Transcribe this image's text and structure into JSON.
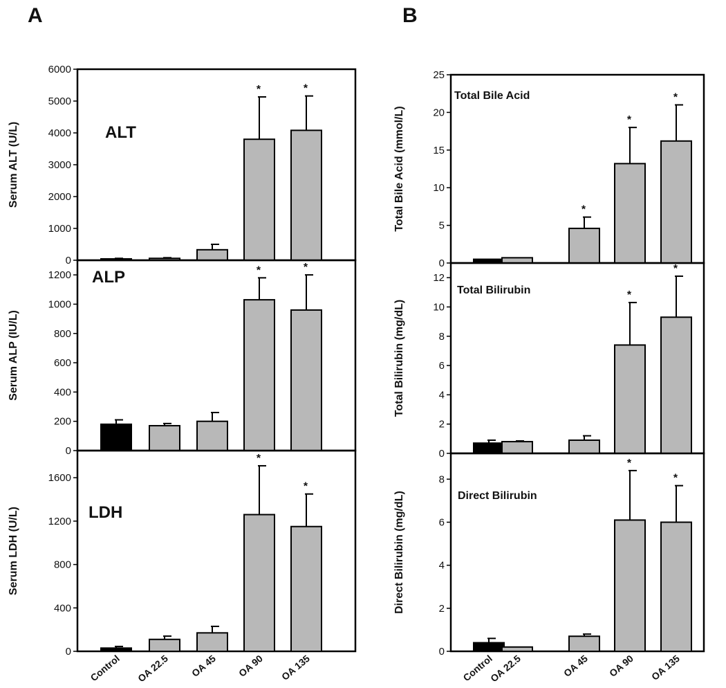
{
  "panels": [
    {
      "letter": "A"
    },
    {
      "letter": "B"
    }
  ],
  "colors": {
    "control_bar": "#000000",
    "treatment_bar": "#b8b8b8",
    "axis": "#000000"
  },
  "chart_data": [
    {
      "type": "bar",
      "panel": "A",
      "title": "ALT",
      "ylabel": "Serum ALT (U/L)",
      "categories": [
        "Control",
        "OA 22.5",
        "OA 45",
        "OA 90",
        "OA 135"
      ],
      "values": [
        40,
        60,
        330,
        3800,
        4080
      ],
      "errors": [
        20,
        20,
        170,
        1330,
        1080
      ],
      "significant": [
        false,
        false,
        false,
        true,
        true
      ],
      "ylim": [
        0,
        6000
      ],
      "yticks": [
        0,
        1000,
        2000,
        3000,
        4000,
        5000,
        6000
      ]
    },
    {
      "type": "bar",
      "panel": "A",
      "title": "ALP",
      "ylabel": "Serum ALP (IU/L)",
      "categories": [
        "Control",
        "OA 22.5",
        "OA 45",
        "OA 90",
        "OA 135"
      ],
      "values": [
        180,
        170,
        200,
        1030,
        960
      ],
      "errors": [
        30,
        15,
        60,
        150,
        240
      ],
      "significant": [
        false,
        false,
        false,
        true,
        true
      ],
      "ylim": [
        0,
        1300
      ],
      "yticks": [
        0,
        200,
        400,
        600,
        800,
        1000,
        1200
      ]
    },
    {
      "type": "bar",
      "panel": "A",
      "title": "LDH",
      "ylabel": "Serum LDH (U/L)",
      "categories": [
        "Control",
        "OA 22.5",
        "OA 45",
        "OA 90",
        "OA 135"
      ],
      "values": [
        30,
        110,
        170,
        1260,
        1150
      ],
      "errors": [
        15,
        30,
        60,
        450,
        300
      ],
      "significant": [
        false,
        false,
        false,
        true,
        true
      ],
      "ylim": [
        0,
        1850
      ],
      "yticks": [
        0,
        400,
        800,
        1200,
        1600
      ]
    },
    {
      "type": "bar",
      "panel": "B",
      "title": "Total Bile Acid",
      "ylabel": "Total Bile Acid (mmol/L)",
      "categories": [
        "Control",
        "OA 22.5",
        "OA 45",
        "OA 90",
        "OA 135"
      ],
      "values": [
        0.5,
        0.7,
        4.6,
        13.2,
        16.2
      ],
      "errors": [
        0,
        0,
        1.5,
        4.8,
        4.8
      ],
      "significant": [
        false,
        false,
        true,
        true,
        true
      ],
      "ylim": [
        0,
        25
      ],
      "yticks": [
        0,
        5,
        10,
        15,
        20,
        25
      ]
    },
    {
      "type": "bar",
      "panel": "B",
      "title": "Total Bilirubin",
      "ylabel": "Total Bilirubin (mg/dL)",
      "categories": [
        "Control",
        "OA 22.5",
        "OA 45",
        "OA 90",
        "OA 135"
      ],
      "values": [
        0.7,
        0.8,
        0.9,
        7.4,
        9.3
      ],
      "errors": [
        0.2,
        0.05,
        0.3,
        2.9,
        2.8
      ],
      "significant": [
        false,
        false,
        false,
        true,
        true
      ],
      "ylim": [
        0,
        13
      ],
      "yticks": [
        0,
        2,
        4,
        6,
        8,
        10,
        12
      ]
    },
    {
      "type": "bar",
      "panel": "B",
      "title": "Direct Bilirubin",
      "ylabel": "Direct Bilirubin (mg/dL)",
      "categories": [
        "Control",
        "OA 22.5",
        "OA 45",
        "OA 90",
        "OA 135"
      ],
      "values": [
        0.4,
        0.2,
        0.7,
        6.1,
        6.0
      ],
      "errors": [
        0.2,
        0,
        0.1,
        2.3,
        1.7
      ],
      "significant": [
        false,
        false,
        false,
        true,
        true
      ],
      "ylim": [
        0,
        9.2
      ],
      "yticks": [
        0,
        2,
        4,
        6,
        8
      ]
    }
  ]
}
